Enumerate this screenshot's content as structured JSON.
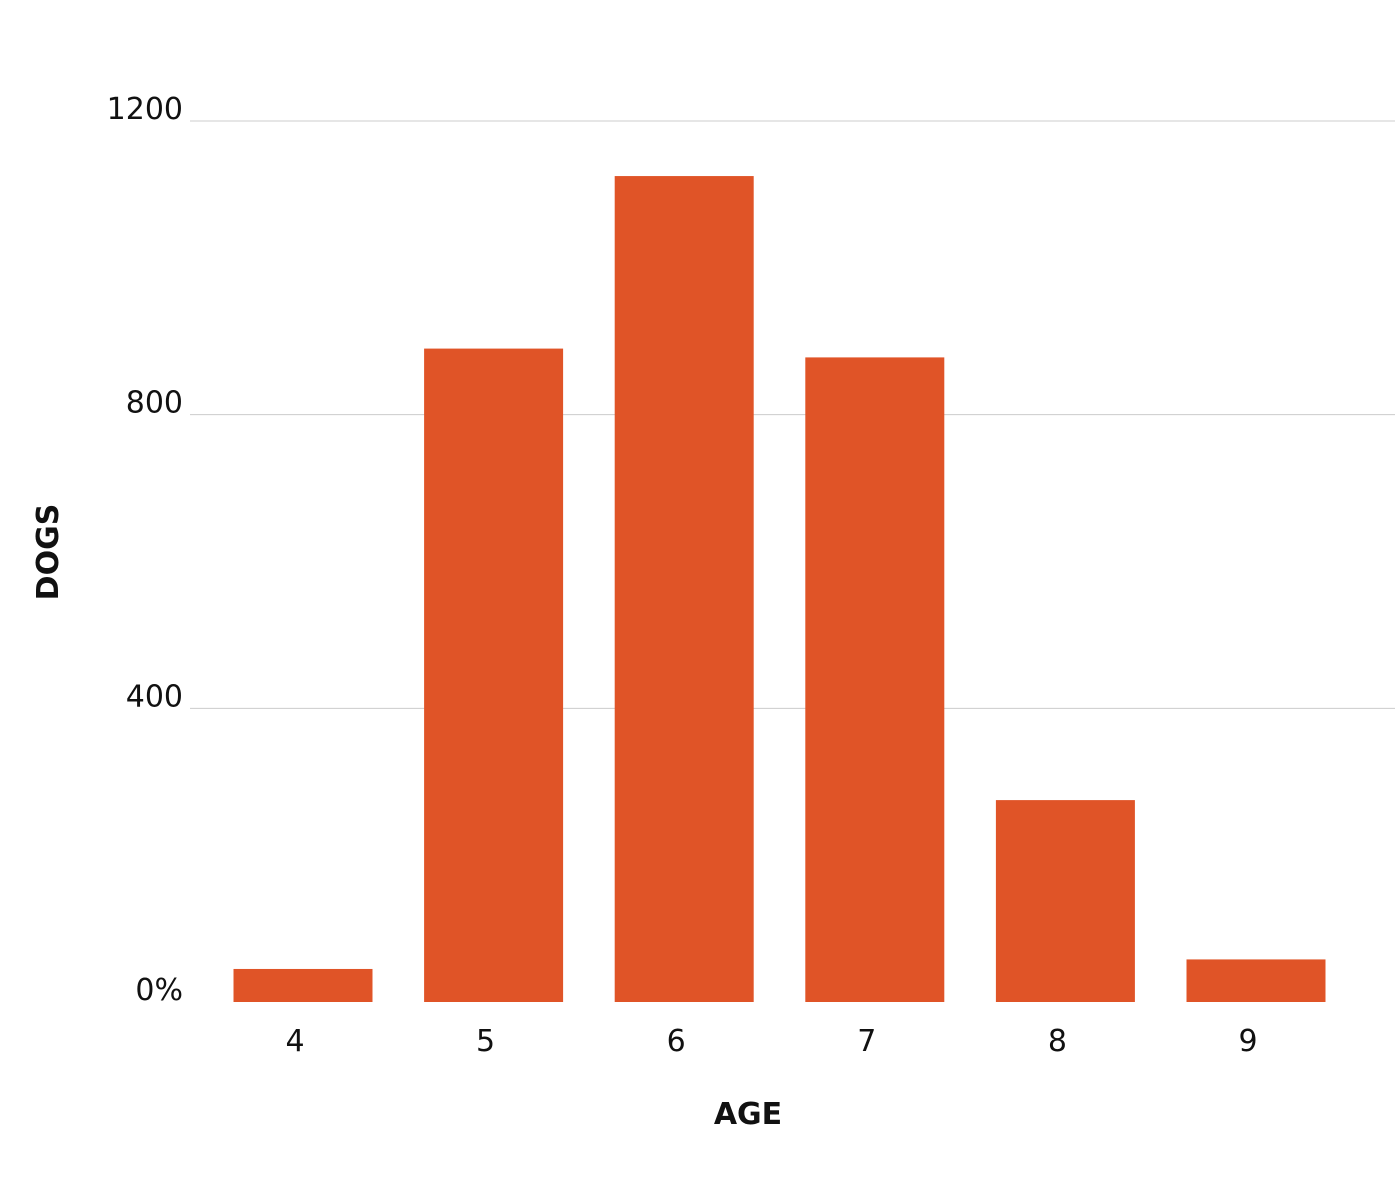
{
  "chart_data": {
    "type": "bar",
    "title": "",
    "xlabel": "AGE",
    "ylabel": "DOGS",
    "categories": [
      "4",
      "5",
      "6",
      "7",
      "8",
      "9"
    ],
    "values": [
      45,
      890,
      1125,
      878,
      275,
      58
    ],
    "ylim": [
      0,
      1200
    ],
    "yticks": [
      0,
      400,
      800,
      1200
    ],
    "ytick_labels": [
      "0%",
      "400",
      "800",
      "1200"
    ],
    "grid": true,
    "legend": "none",
    "colors": {
      "bar": "#E05427",
      "grid": "#cccccc",
      "text": "#111111"
    }
  }
}
